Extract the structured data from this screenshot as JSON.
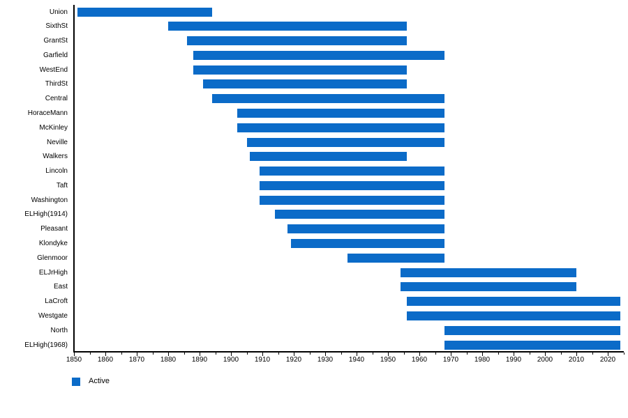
{
  "colors": {
    "bar": "#0b6bc8",
    "axis": "#000000",
    "text": "#000000",
    "background": "#ffffff"
  },
  "legend": {
    "label": "Active"
  },
  "chart_data": {
    "type": "bar",
    "subtype": "gantt-timeline",
    "title": "",
    "xlabel": "",
    "ylabel": "",
    "legend_position": "bottom-left",
    "legend_entries": [
      {
        "label": "Active",
        "color": "#0b6bc8"
      }
    ],
    "x_axis": {
      "min": 1850,
      "max": 2025,
      "major_tick_interval": 10,
      "minor_tick_interval": 5,
      "tick_labels": [
        1850,
        1860,
        1870,
        1880,
        1890,
        1900,
        1910,
        1920,
        1930,
        1940,
        1950,
        1960,
        1970,
        1980,
        1990,
        2000,
        2010,
        2020
      ]
    },
    "grid": false,
    "rows": [
      {
        "name": "Union",
        "start": 1851,
        "end": 1894
      },
      {
        "name": "SixthSt",
        "start": 1880,
        "end": 1956
      },
      {
        "name": "GrantSt",
        "start": 1886,
        "end": 1956
      },
      {
        "name": "Garfield",
        "start": 1888,
        "end": 1968
      },
      {
        "name": "WestEnd",
        "start": 1888,
        "end": 1956
      },
      {
        "name": "ThirdSt",
        "start": 1891,
        "end": 1956
      },
      {
        "name": "Central",
        "start": 1894,
        "end": 1968
      },
      {
        "name": "HoraceMann",
        "start": 1902,
        "end": 1968
      },
      {
        "name": "McKinley",
        "start": 1902,
        "end": 1968
      },
      {
        "name": "Neville",
        "start": 1905,
        "end": 1968
      },
      {
        "name": "Walkers",
        "start": 1906,
        "end": 1956
      },
      {
        "name": "Lincoln",
        "start": 1909,
        "end": 1968
      },
      {
        "name": "Taft",
        "start": 1909,
        "end": 1968
      },
      {
        "name": "Washington",
        "start": 1909,
        "end": 1968
      },
      {
        "name": "ELHigh(1914)",
        "start": 1914,
        "end": 1968
      },
      {
        "name": "Pleasant",
        "start": 1918,
        "end": 1968
      },
      {
        "name": "Klondyke",
        "start": 1919,
        "end": 1968
      },
      {
        "name": "Glenmoor",
        "start": 1937,
        "end": 1968
      },
      {
        "name": "ELJrHigh",
        "start": 1954,
        "end": 2010
      },
      {
        "name": "East",
        "start": 1954,
        "end": 2010
      },
      {
        "name": "LaCroft",
        "start": 1956,
        "end": 2024
      },
      {
        "name": "Westgate",
        "start": 1956,
        "end": 2024
      },
      {
        "name": "North",
        "start": 1968,
        "end": 2024
      },
      {
        "name": "ELHigh(1968)",
        "start": 1968,
        "end": 2024
      }
    ]
  }
}
